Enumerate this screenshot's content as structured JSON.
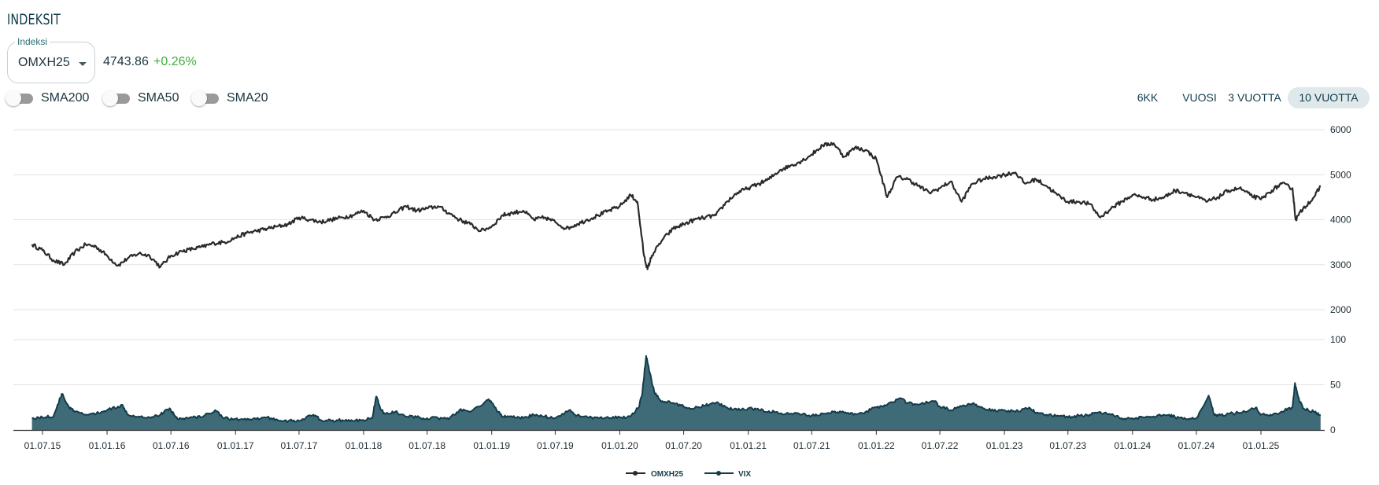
{
  "header": {
    "title": "INDEKSIT"
  },
  "index_select": {
    "legend": "Indeksi",
    "value": "OMXH25"
  },
  "quote": {
    "price": "4743.86",
    "change": "+0.26%"
  },
  "toggles": [
    {
      "label": "SMA200",
      "on": false
    },
    {
      "label": "SMA50",
      "on": false
    },
    {
      "label": "SMA20",
      "on": false
    }
  ],
  "periods": [
    {
      "label": "6KK",
      "active": false
    },
    {
      "label": "VUOSI",
      "active": false
    },
    {
      "label": "3 VUOTTA",
      "active": false
    },
    {
      "label": "10 VUOTTA",
      "active": true
    }
  ],
  "colors": {
    "price_line": "#2a2a2a",
    "vix_fill": "#3f6a78",
    "vix_line": "#123c4a",
    "grid": "#e3e3e3",
    "active_period_bg": "#dfe8ea",
    "change_positive": "#3fae3f"
  },
  "chart_data": [
    {
      "type": "line",
      "series": [
        {
          "name": "OMXH25",
          "x": [
            "2015-06-01",
            "2015-07-01",
            "2015-08-01",
            "2015-09-01",
            "2015-10-01",
            "2015-11-01",
            "2015-12-01",
            "2016-01-01",
            "2016-02-01",
            "2016-03-01",
            "2016-04-01",
            "2016-05-01",
            "2016-06-01",
            "2016-07-01",
            "2016-08-01",
            "2016-09-01",
            "2016-10-01",
            "2016-11-01",
            "2016-12-01",
            "2017-01-01",
            "2017-02-01",
            "2017-03-01",
            "2017-04-01",
            "2017-05-01",
            "2017-06-01",
            "2017-07-01",
            "2017-08-01",
            "2017-09-01",
            "2017-10-01",
            "2017-11-01",
            "2017-12-01",
            "2018-01-01",
            "2018-02-01",
            "2018-03-01",
            "2018-04-01",
            "2018-05-01",
            "2018-06-01",
            "2018-07-01",
            "2018-08-01",
            "2018-09-01",
            "2018-10-01",
            "2018-11-01",
            "2018-12-01",
            "2019-01-01",
            "2019-02-01",
            "2019-03-01",
            "2019-04-01",
            "2019-05-01",
            "2019-06-01",
            "2019-07-01",
            "2019-08-01",
            "2019-09-01",
            "2019-10-01",
            "2019-11-01",
            "2019-12-01",
            "2020-01-01",
            "2020-02-01",
            "2020-02-20",
            "2020-03-10",
            "2020-03-20",
            "2020-04-01",
            "2020-05-01",
            "2020-06-01",
            "2020-07-01",
            "2020-08-01",
            "2020-09-01",
            "2020-10-01",
            "2020-11-01",
            "2020-12-01",
            "2021-01-01",
            "2021-02-01",
            "2021-03-01",
            "2021-04-01",
            "2021-05-01",
            "2021-06-01",
            "2021-07-01",
            "2021-08-01",
            "2021-09-01",
            "2021-10-01",
            "2021-11-01",
            "2021-12-01",
            "2022-01-01",
            "2022-02-01",
            "2022-03-01",
            "2022-04-01",
            "2022-05-01",
            "2022-06-01",
            "2022-07-01",
            "2022-08-01",
            "2022-09-01",
            "2022-10-01",
            "2022-11-01",
            "2022-12-01",
            "2023-01-01",
            "2023-02-01",
            "2023-03-01",
            "2023-04-01",
            "2023-05-01",
            "2023-06-01",
            "2023-07-01",
            "2023-08-01",
            "2023-09-01",
            "2023-10-01",
            "2023-11-01",
            "2023-12-01",
            "2024-01-01",
            "2024-02-01",
            "2024-03-01",
            "2024-04-01",
            "2024-05-01",
            "2024-06-01",
            "2024-07-01",
            "2024-08-01",
            "2024-09-01",
            "2024-10-01",
            "2024-11-01",
            "2024-12-01",
            "2025-01-01",
            "2025-02-01",
            "2025-03-01",
            "2025-04-01",
            "2025-04-10",
            "2025-05-01",
            "2025-06-01",
            "2025-06-20"
          ],
          "values": [
            3450,
            3320,
            3100,
            3000,
            3280,
            3450,
            3400,
            3200,
            2980,
            3150,
            3250,
            3200,
            2950,
            3200,
            3300,
            3350,
            3400,
            3480,
            3500,
            3600,
            3700,
            3750,
            3800,
            3850,
            3900,
            4050,
            4000,
            3950,
            4000,
            4050,
            4100,
            4200,
            4000,
            4050,
            4150,
            4300,
            4200,
            4250,
            4300,
            4150,
            4000,
            3900,
            3750,
            3850,
            4100,
            4150,
            4200,
            4000,
            4050,
            3950,
            3800,
            3900,
            4000,
            4100,
            4200,
            4300,
            4550,
            4400,
            3200,
            2900,
            3200,
            3550,
            3800,
            3900,
            4000,
            4050,
            4100,
            4400,
            4600,
            4700,
            4800,
            4900,
            5100,
            5200,
            5300,
            5450,
            5650,
            5700,
            5400,
            5600,
            5550,
            5350,
            4500,
            4950,
            4900,
            4750,
            4600,
            4700,
            4850,
            4400,
            4800,
            4900,
            4950,
            5000,
            5050,
            4800,
            4900,
            4750,
            4550,
            4400,
            4400,
            4350,
            4050,
            4250,
            4400,
            4550,
            4500,
            4450,
            4500,
            4650,
            4600,
            4500,
            4400,
            4500,
            4650,
            4700,
            4550,
            4450,
            4650,
            4800,
            4700,
            4000,
            4250,
            4500,
            4740
          ]
        }
      ],
      "ylim": [
        2000,
        6000
      ],
      "yticks": [
        "2000",
        "3000",
        "4000",
        "5000",
        "6000"
      ],
      "grid": true
    },
    {
      "type": "area",
      "series": [
        {
          "name": "VIX",
          "x": [
            "2015-06-01",
            "2015-07-01",
            "2015-08-01",
            "2015-08-25",
            "2015-09-15",
            "2015-10-01",
            "2015-11-01",
            "2015-12-01",
            "2016-01-01",
            "2016-02-01",
            "2016-02-15",
            "2016-03-01",
            "2016-04-01",
            "2016-05-01",
            "2016-06-01",
            "2016-06-27",
            "2016-07-15",
            "2016-08-01",
            "2016-09-01",
            "2016-10-01",
            "2016-11-04",
            "2016-12-01",
            "2017-01-01",
            "2017-02-01",
            "2017-03-01",
            "2017-04-01",
            "2017-05-01",
            "2017-06-01",
            "2017-07-01",
            "2017-08-11",
            "2017-09-01",
            "2017-10-01",
            "2017-11-01",
            "2017-12-01",
            "2018-01-01",
            "2018-01-25",
            "2018-02-06",
            "2018-02-20",
            "2018-03-01",
            "2018-04-01",
            "2018-05-01",
            "2018-06-01",
            "2018-07-01",
            "2018-08-01",
            "2018-09-01",
            "2018-10-01",
            "2018-11-01",
            "2018-12-24",
            "2019-01-15",
            "2019-02-01",
            "2019-03-01",
            "2019-04-01",
            "2019-05-01",
            "2019-06-01",
            "2019-07-01",
            "2019-08-10",
            "2019-09-01",
            "2019-10-01",
            "2019-11-01",
            "2019-12-01",
            "2020-01-01",
            "2020-02-01",
            "2020-02-24",
            "2020-03-05",
            "2020-03-16",
            "2020-03-25",
            "2020-04-10",
            "2020-05-01",
            "2020-06-01",
            "2020-07-01",
            "2020-08-01",
            "2020-09-01",
            "2020-10-01",
            "2020-11-01",
            "2020-12-01",
            "2021-01-01",
            "2021-02-01",
            "2021-03-01",
            "2021-04-01",
            "2021-05-01",
            "2021-06-01",
            "2021-07-01",
            "2021-08-01",
            "2021-09-01",
            "2021-10-01",
            "2021-11-01",
            "2021-12-01",
            "2022-01-01",
            "2022-02-01",
            "2022-03-07",
            "2022-04-01",
            "2022-05-01",
            "2022-06-15",
            "2022-07-01",
            "2022-08-01",
            "2022-09-01",
            "2022-10-01",
            "2022-11-01",
            "2022-12-01",
            "2023-01-01",
            "2023-02-01",
            "2023-03-13",
            "2023-04-01",
            "2023-05-01",
            "2023-06-01",
            "2023-07-01",
            "2023-08-01",
            "2023-09-01",
            "2023-10-01",
            "2023-11-01",
            "2023-12-01",
            "2024-01-01",
            "2024-02-01",
            "2024-03-01",
            "2024-04-15",
            "2024-05-01",
            "2024-06-01",
            "2024-07-01",
            "2024-08-05",
            "2024-08-20",
            "2024-09-01",
            "2024-10-01",
            "2024-11-01",
            "2024-12-18",
            "2025-01-01",
            "2025-02-01",
            "2025-03-10",
            "2025-04-01",
            "2025-04-08",
            "2025-04-20",
            "2025-05-01",
            "2025-06-01",
            "2025-06-20"
          ],
          "values": [
            13,
            14,
            15,
            40,
            25,
            20,
            17,
            18,
            22,
            26,
            27,
            17,
            15,
            14,
            17,
            24,
            14,
            12,
            14,
            15,
            22,
            13,
            12,
            11,
            12,
            14,
            11,
            10,
            10,
            17,
            11,
            10,
            11,
            10,
            11,
            13,
            37,
            22,
            18,
            20,
            15,
            14,
            13,
            13,
            12,
            22,
            20,
            34,
            22,
            15,
            14,
            13,
            17,
            15,
            13,
            22,
            16,
            14,
            13,
            13,
            14,
            15,
            25,
            40,
            82,
            65,
            40,
            32,
            30,
            26,
            24,
            27,
            30,
            25,
            22,
            24,
            22,
            21,
            18,
            18,
            17,
            16,
            18,
            20,
            19,
            18,
            20,
            25,
            28,
            35,
            30,
            28,
            32,
            26,
            22,
            26,
            29,
            24,
            21,
            22,
            20,
            25,
            19,
            17,
            16,
            14,
            16,
            17,
            20,
            17,
            13,
            13,
            14,
            15,
            17,
            14,
            12,
            13,
            38,
            18,
            16,
            18,
            19,
            25,
            17,
            16,
            22,
            25,
            52,
            33,
            24,
            20,
            17
          ]
        }
      ],
      "ylim": [
        0,
        100
      ],
      "yticks": [
        "0",
        "50",
        "100"
      ],
      "grid": true
    }
  ],
  "x_axis": {
    "tick_labels": [
      "01.07.15",
      "01.01.16",
      "01.07.16",
      "01.01.17",
      "01.07.17",
      "01.01.18",
      "01.07.18",
      "01.01.19",
      "01.07.19",
      "01.01.20",
      "01.07.20",
      "01.01.21",
      "01.07.21",
      "01.01.22",
      "01.07.22",
      "01.01.23",
      "01.07.23",
      "01.01.24",
      "01.07.24",
      "01.01.25"
    ],
    "tick_dates": [
      "2015-07-01",
      "2016-01-01",
      "2016-07-01",
      "2017-01-01",
      "2017-07-01",
      "2018-01-01",
      "2018-07-01",
      "2019-01-01",
      "2019-07-01",
      "2020-01-01",
      "2020-07-01",
      "2021-01-01",
      "2021-07-01",
      "2022-01-01",
      "2022-07-01",
      "2023-01-01",
      "2023-07-01",
      "2024-01-01",
      "2024-07-01",
      "2025-01-01"
    ]
  },
  "legend": [
    {
      "label": "OMXH25"
    },
    {
      "label": "VIX"
    }
  ]
}
